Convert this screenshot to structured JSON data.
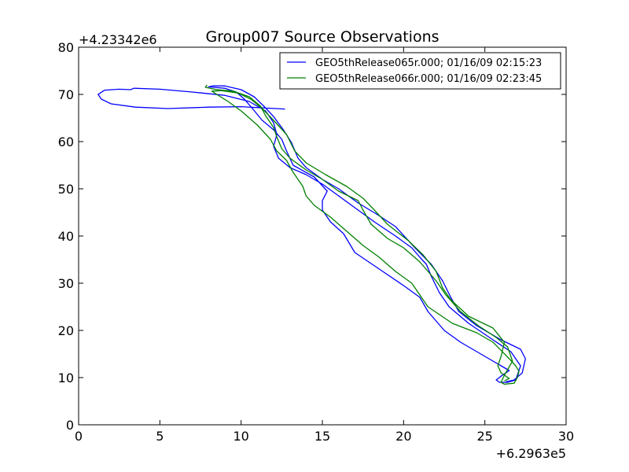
{
  "chart_data": {
    "type": "line",
    "title": "Group007 Source Observations",
    "xlabel": "",
    "ylabel": "",
    "x_offset_label": "+6.2963e5",
    "y_offset_label": "+4.23342e6",
    "xlim": [
      0,
      30
    ],
    "ylim": [
      0,
      80
    ],
    "xticks": [
      0,
      5,
      10,
      15,
      20,
      25,
      30
    ],
    "yticks": [
      0,
      10,
      20,
      30,
      40,
      50,
      60,
      70,
      80
    ],
    "grid": false,
    "legend_position": "top-right",
    "series": [
      {
        "name": "GEO5thRelease065r.000; 01/16/09 02:15:23",
        "color": "#0000ff",
        "points": [
          [
            12.7,
            66.9
          ],
          [
            10.0,
            67.4
          ],
          [
            8.0,
            67.3
          ],
          [
            5.5,
            67.0
          ],
          [
            3.5,
            67.3
          ],
          [
            2.0,
            68.0
          ],
          [
            1.4,
            69.0
          ],
          [
            1.2,
            70.0
          ],
          [
            1.6,
            70.9
          ],
          [
            2.5,
            71.1
          ],
          [
            3.2,
            71.0
          ],
          [
            3.4,
            71.3
          ],
          [
            5.0,
            71.1
          ],
          [
            7.0,
            70.5
          ],
          [
            9.0,
            69.8
          ],
          [
            10.5,
            68.5
          ],
          [
            11.5,
            66.5
          ],
          [
            12.0,
            64.0
          ],
          [
            12.2,
            61.5
          ],
          [
            12.0,
            59.0
          ],
          [
            12.3,
            56.5
          ],
          [
            13.0,
            54.5
          ],
          [
            14.0,
            53.0
          ],
          [
            15.0,
            51.0
          ],
          [
            16.0,
            48.5
          ],
          [
            17.0,
            46.0
          ],
          [
            18.2,
            43.0
          ],
          [
            19.5,
            40.0
          ],
          [
            20.5,
            37.5
          ],
          [
            21.0,
            35.5
          ],
          [
            21.4,
            34.0
          ],
          [
            21.7,
            31.5
          ],
          [
            22.2,
            28.0
          ],
          [
            22.8,
            25.0
          ],
          [
            24.0,
            21.5
          ],
          [
            25.5,
            18.0
          ],
          [
            26.6,
            15.5
          ],
          [
            27.2,
            12.5
          ],
          [
            26.9,
            9.5
          ],
          [
            26.4,
            9.0
          ],
          [
            25.9,
            9.0
          ],
          [
            25.7,
            9.5
          ],
          [
            26.0,
            10.3
          ],
          [
            26.5,
            11.5
          ],
          [
            26.0,
            12.5
          ],
          [
            25.0,
            14.5
          ],
          [
            23.5,
            17.5
          ],
          [
            22.5,
            20.0
          ],
          [
            21.5,
            24.0
          ],
          [
            21.0,
            27.0
          ],
          [
            20.0,
            29.5
          ],
          [
            18.5,
            33.0
          ],
          [
            17.0,
            36.5
          ],
          [
            16.3,
            40.5
          ],
          [
            15.5,
            43.0
          ],
          [
            15.0,
            45.5
          ],
          [
            15.0,
            47.5
          ],
          [
            15.3,
            49.5
          ],
          [
            14.5,
            52.5
          ],
          [
            13.2,
            55.0
          ],
          [
            12.8,
            58.0
          ],
          [
            12.5,
            60.5
          ],
          [
            12.0,
            62.5
          ],
          [
            11.3,
            64.5
          ],
          [
            10.7,
            67.0
          ],
          [
            10.2,
            69.0
          ],
          [
            9.7,
            70.5
          ],
          [
            9.0,
            71.3
          ],
          [
            8.3,
            71.5
          ],
          [
            8.0,
            71.6
          ],
          [
            8.3,
            71.8
          ],
          [
            9.0,
            71.8
          ],
          [
            10.0,
            71.0
          ],
          [
            10.8,
            69.5
          ],
          [
            11.4,
            67.5
          ],
          [
            12.0,
            65.3
          ],
          [
            12.6,
            62.5
          ],
          [
            13.1,
            59.8
          ],
          [
            13.5,
            56.5
          ],
          [
            14.0,
            54.5
          ],
          [
            15.0,
            52.0
          ],
          [
            16.0,
            50.0
          ],
          [
            17.2,
            47.0
          ],
          [
            18.4,
            44.5
          ],
          [
            19.5,
            42.0
          ],
          [
            20.7,
            37.5
          ],
          [
            21.7,
            34.0
          ],
          [
            22.4,
            30.5
          ],
          [
            22.9,
            27.0
          ],
          [
            23.4,
            24.0
          ],
          [
            24.5,
            21.0
          ],
          [
            26.0,
            18.0
          ],
          [
            27.2,
            16.0
          ],
          [
            27.5,
            14.0
          ],
          [
            27.3,
            11.0
          ],
          [
            26.8,
            9.5
          ],
          [
            26.3,
            9.1
          ]
        ]
      },
      {
        "name": "GEO5thRelease066r.000; 01/16/09 02:23:45",
        "color": "#008000",
        "points": [
          [
            7.9,
            72.0
          ],
          [
            7.8,
            71.5
          ],
          [
            8.5,
            71.0
          ],
          [
            9.5,
            70.7
          ],
          [
            10.5,
            69.5
          ],
          [
            11.2,
            67.5
          ],
          [
            11.5,
            65.5
          ],
          [
            12.0,
            63.0
          ],
          [
            12.2,
            61.0
          ],
          [
            12.5,
            58.5
          ],
          [
            13.0,
            56.5
          ],
          [
            14.0,
            54.0
          ],
          [
            15.0,
            52.0
          ],
          [
            16.0,
            49.5
          ],
          [
            17.2,
            47.5
          ],
          [
            17.5,
            45.5
          ],
          [
            18.0,
            42.5
          ],
          [
            19.0,
            39.5
          ],
          [
            20.0,
            37.5
          ],
          [
            21.0,
            34.5
          ],
          [
            22.0,
            30.5
          ],
          [
            22.6,
            27.5
          ],
          [
            23.5,
            24.0
          ],
          [
            24.6,
            21.0
          ],
          [
            25.7,
            18.5
          ],
          [
            26.4,
            16.5
          ],
          [
            26.7,
            13.5
          ],
          [
            26.2,
            10.5
          ],
          [
            26.0,
            9.0
          ],
          [
            26.2,
            8.6
          ],
          [
            26.8,
            8.8
          ],
          [
            27.0,
            10.0
          ],
          [
            27.1,
            11.3
          ],
          [
            26.9,
            12.5
          ],
          [
            26.5,
            14.0
          ],
          [
            25.5,
            17.5
          ],
          [
            24.5,
            19.5
          ],
          [
            23.0,
            21.5
          ],
          [
            21.5,
            25.0
          ],
          [
            20.8,
            28.5
          ],
          [
            20.5,
            30.0
          ],
          [
            19.5,
            32.5
          ],
          [
            18.5,
            35.5
          ],
          [
            17.5,
            38.0
          ],
          [
            16.5,
            41.0
          ],
          [
            15.5,
            44.0
          ],
          [
            14.5,
            46.5
          ],
          [
            14.0,
            48.5
          ],
          [
            13.8,
            50.5
          ],
          [
            13.2,
            53.5
          ],
          [
            12.8,
            56.0
          ],
          [
            12.2,
            58.0
          ],
          [
            11.8,
            60.5
          ],
          [
            11.0,
            63.5
          ],
          [
            10.0,
            66.5
          ],
          [
            9.2,
            68.5
          ],
          [
            8.5,
            70.0
          ],
          [
            8.2,
            70.7
          ],
          [
            8.8,
            70.8
          ],
          [
            9.8,
            70.3
          ],
          [
            10.6,
            69.0
          ],
          [
            11.3,
            67.0
          ],
          [
            12.0,
            64.5
          ],
          [
            12.8,
            61.5
          ],
          [
            13.3,
            58.0
          ],
          [
            14.0,
            55.5
          ],
          [
            15.2,
            53.0
          ],
          [
            16.5,
            50.5
          ],
          [
            17.5,
            48.0
          ],
          [
            18.2,
            45.5
          ],
          [
            19.0,
            42.5
          ],
          [
            20.3,
            39.0
          ],
          [
            21.2,
            36.0
          ],
          [
            22.0,
            32.5
          ],
          [
            22.4,
            29.0
          ],
          [
            22.9,
            26.5
          ],
          [
            24.0,
            23.0
          ],
          [
            25.5,
            20.5
          ],
          [
            26.2,
            17.5
          ],
          [
            26.0,
            14.5
          ],
          [
            25.8,
            12.5
          ],
          [
            26.0,
            11.0
          ],
          [
            26.5,
            9.8
          ],
          [
            26.2,
            9.3
          ]
        ]
      }
    ]
  }
}
